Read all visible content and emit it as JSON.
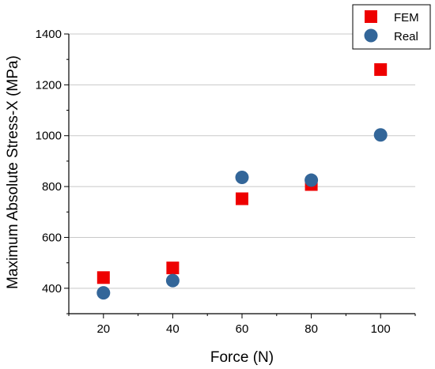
{
  "chart_data": {
    "type": "scatter",
    "title": "",
    "xlabel": "Force (N)",
    "ylabel": "Maximum Absolute Stress-X (MPa)",
    "xlim": [
      10,
      110
    ],
    "ylim": [
      300,
      1400
    ],
    "x_ticks": [
      20,
      40,
      60,
      80,
      100
    ],
    "y_ticks": [
      400,
      600,
      800,
      1000,
      1200,
      1400
    ],
    "grid": "horizontal",
    "legend_position": "top-right",
    "series": [
      {
        "name": "FEM",
        "marker": "square",
        "color": "#ee0000",
        "x": [
          20,
          40,
          60,
          80,
          100
        ],
        "y": [
          442,
          480,
          752,
          808,
          1260
        ]
      },
      {
        "name": "Real",
        "marker": "circle",
        "color": "#336699",
        "x": [
          20,
          40,
          60,
          80,
          100
        ],
        "y": [
          382,
          430,
          836,
          825,
          1003
        ]
      }
    ]
  }
}
